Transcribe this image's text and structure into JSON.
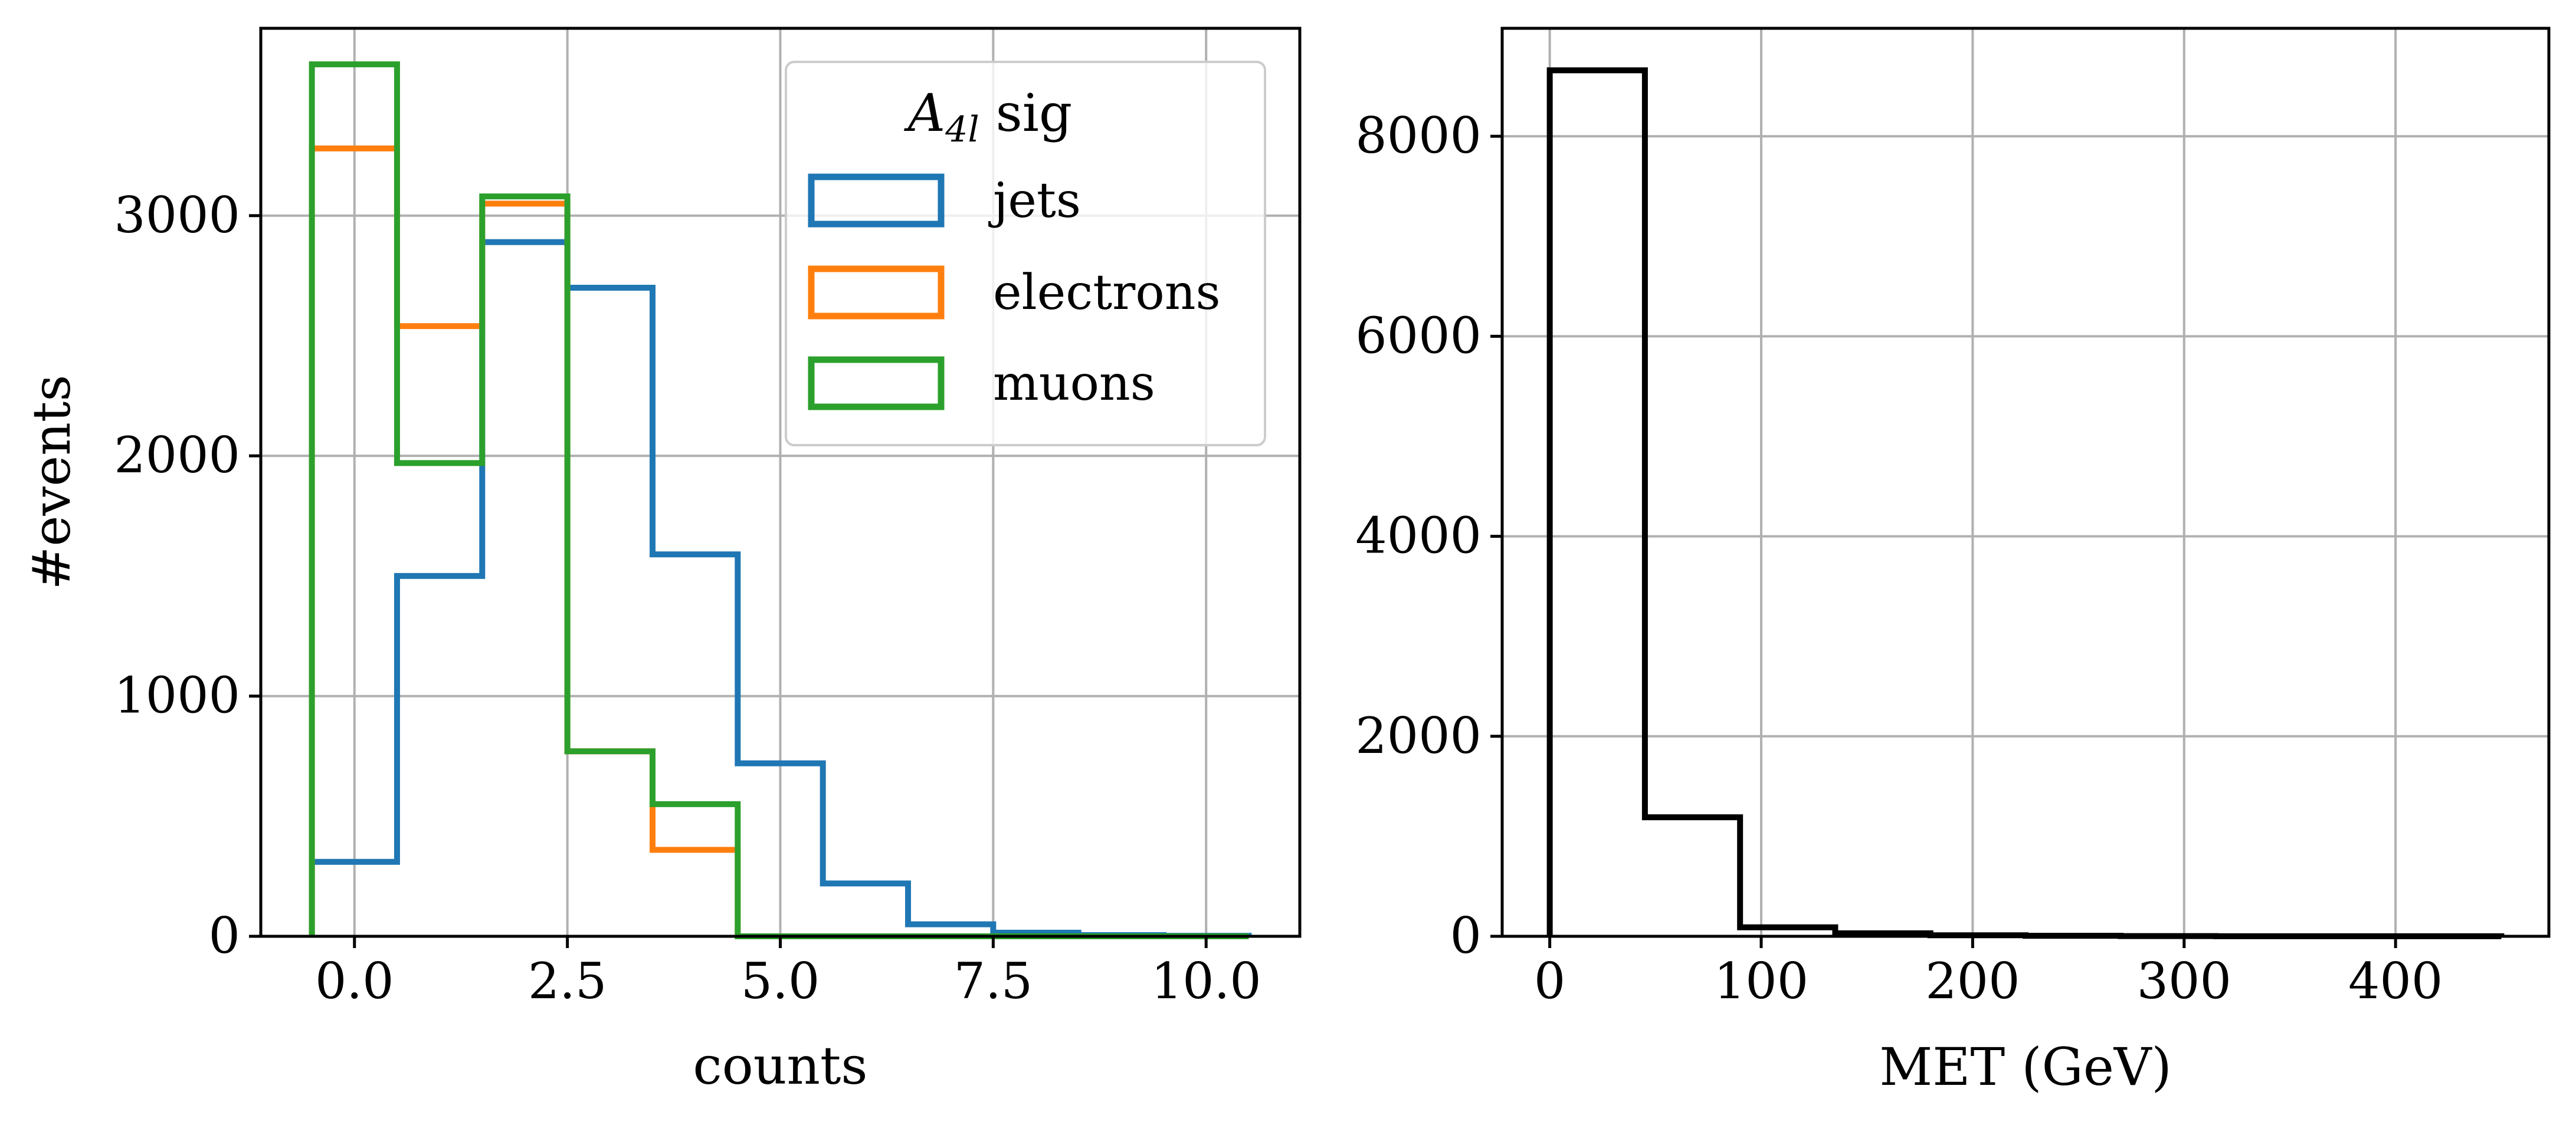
{
  "chart_data": [
    {
      "type": "step-histogram",
      "xlabel": "counts",
      "ylabel": "#events",
      "xlim": [
        -1.1,
        11.1
      ],
      "ylim": [
        0,
        3780
      ],
      "xticks": [
        0.0,
        2.5,
        5.0,
        7.5,
        10.0
      ],
      "xtick_labels": [
        "0.0",
        "2.5",
        "5.0",
        "7.5",
        "10.0"
      ],
      "yticks": [
        0,
        1000,
        2000,
        3000
      ],
      "ytick_labels": [
        "0",
        "1000",
        "2000",
        "3000"
      ],
      "grid": true,
      "legend": {
        "title_main": "A",
        "title_sub": "4l",
        "title_rest": " sig",
        "placement": "top-right"
      },
      "bin_edges": [
        -0.5,
        0.5,
        1.5,
        2.5,
        3.5,
        4.5,
        5.5,
        6.5,
        7.5,
        8.5,
        9.5,
        10.5
      ],
      "series": [
        {
          "name": "jets",
          "color": "#1f77b4",
          "values": [
            310,
            1500,
            2890,
            2700,
            1590,
            720,
            220,
            50,
            15,
            5,
            2
          ]
        },
        {
          "name": "electrons",
          "color": "#ff7f0e",
          "values": [
            3280,
            2540,
            3050,
            770,
            360,
            0,
            0,
            0,
            0,
            0,
            0
          ]
        },
        {
          "name": "muons",
          "color": "#2ca02c",
          "values": [
            3630,
            1970,
            3080,
            770,
            550,
            0,
            0,
            0,
            0,
            0,
            0
          ]
        }
      ]
    },
    {
      "type": "step-histogram",
      "xlabel": "MET (GeV)",
      "ylabel": "",
      "xlim": [
        -22.5,
        472.5
      ],
      "ylim": [
        0,
        9080
      ],
      "xticks": [
        0,
        100,
        200,
        300,
        400
      ],
      "xtick_labels": [
        "0",
        "100",
        "200",
        "300",
        "400"
      ],
      "yticks": [
        0,
        2000,
        4000,
        6000,
        8000
      ],
      "ytick_labels": [
        "0",
        "2000",
        "4000",
        "6000",
        "8000"
      ],
      "grid": true,
      "bin_edges": [
        0,
        45,
        90,
        135,
        180,
        225,
        270,
        315,
        360,
        405,
        450
      ],
      "series": [
        {
          "name": "MET",
          "color": "#000000",
          "values": [
            8660,
            1190,
            90,
            30,
            10,
            5,
            2,
            1,
            1,
            1
          ]
        }
      ]
    }
  ]
}
